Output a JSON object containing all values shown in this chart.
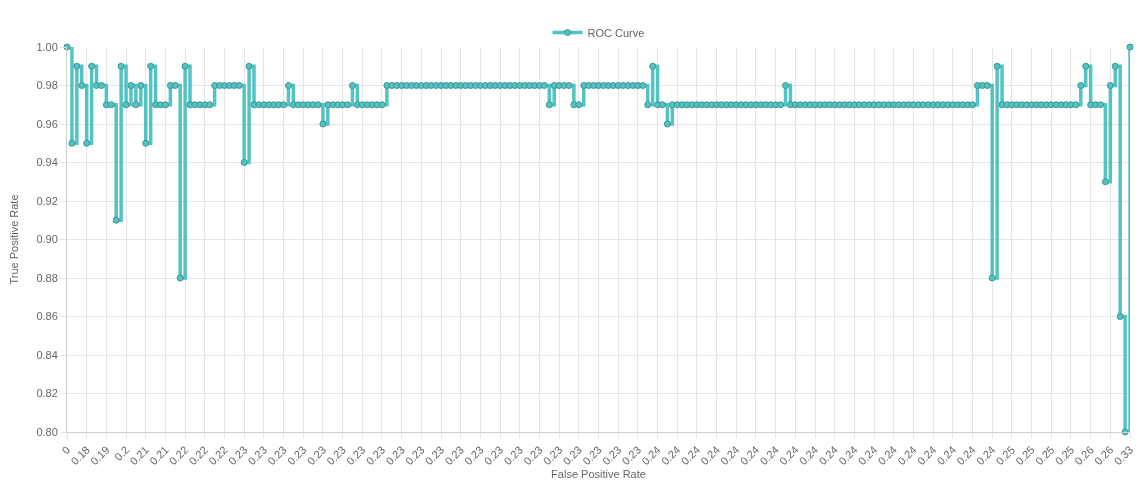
{
  "chart_data": {
    "type": "step",
    "xlabel": "False Positive Rate",
    "ylabel": "True Positive Rate",
    "categories": [
      "0",
      null,
      null,
      null,
      "0.18",
      null,
      null,
      null,
      "0.19",
      null,
      null,
      null,
      "0.2",
      null,
      null,
      null,
      "0.21",
      null,
      null,
      null,
      "0.21",
      null,
      null,
      null,
      "0.22",
      null,
      null,
      null,
      "0.22",
      null,
      null,
      null,
      "0.22",
      null,
      null,
      null,
      "0.23",
      null,
      null,
      null,
      "0.23",
      null,
      null,
      null,
      "0.23",
      null,
      null,
      null,
      "0.23",
      null,
      null,
      null,
      "0.23",
      null,
      null,
      null,
      "0.23",
      null,
      null,
      null,
      "0.23",
      null,
      null,
      null,
      "0.23",
      null,
      null,
      null,
      "0.23",
      null,
      null,
      null,
      "0.23",
      null,
      null,
      null,
      "0.23",
      null,
      null,
      null,
      "0.23",
      null,
      null,
      null,
      "0.23",
      null,
      null,
      null,
      "0.23",
      null,
      null,
      null,
      "0.23",
      null,
      null,
      null,
      "0.23",
      null,
      null,
      null,
      "0.23",
      null,
      null,
      null,
      "0.23",
      null,
      null,
      null,
      "0.23",
      null,
      null,
      null,
      "0.23",
      null,
      null,
      null,
      "0.23",
      null,
      null,
      null,
      "0.24",
      null,
      null,
      null,
      "0.24",
      null,
      null,
      null,
      "0.24",
      null,
      null,
      null,
      "0.24",
      null,
      null,
      null,
      "0.24",
      null,
      null,
      null,
      "0.24",
      null,
      null,
      null,
      "0.24",
      null,
      null,
      null,
      "0.24",
      null,
      null,
      null,
      "0.24",
      null,
      null,
      null,
      "0.24",
      null,
      null,
      null,
      "0.24",
      null,
      null,
      null,
      "0.24",
      null,
      null,
      null,
      "0.24",
      null,
      null,
      null,
      "0.24",
      null,
      null,
      null,
      "0.24",
      null,
      null,
      null,
      "0.24",
      null,
      null,
      null,
      "0.24",
      null,
      null,
      null,
      "0.24",
      null,
      null,
      null,
      "0.25",
      null,
      null,
      null,
      "0.25",
      null,
      null,
      null,
      "0.25",
      null,
      null,
      null,
      "0.25",
      null,
      null,
      null,
      "0.26",
      null,
      null,
      null,
      "0.26",
      null,
      null,
      null,
      "0.33"
    ],
    "series": [
      {
        "name": "ROC Curve",
        "color": "#4bc0c0",
        "values": [
          1.0,
          0.95,
          0.99,
          0.98,
          0.95,
          0.99,
          0.98,
          0.98,
          0.97,
          0.97,
          0.91,
          0.99,
          0.97,
          0.98,
          0.97,
          0.98,
          0.95,
          0.99,
          0.97,
          0.97,
          0.97,
          0.98,
          0.98,
          0.88,
          0.99,
          0.97,
          0.97,
          0.97,
          0.97,
          0.97,
          0.98,
          0.98,
          0.98,
          0.98,
          0.98,
          0.98,
          0.94,
          0.99,
          0.97,
          0.97,
          0.97,
          0.97,
          0.97,
          0.97,
          0.97,
          0.98,
          0.97,
          0.97,
          0.97,
          0.97,
          0.97,
          0.97,
          0.96,
          0.97,
          0.97,
          0.97,
          0.97,
          0.97,
          0.98,
          0.97,
          0.97,
          0.97,
          0.97,
          0.97,
          0.97,
          0.98,
          0.98,
          0.98,
          0.98,
          0.98,
          0.98,
          0.98,
          0.98,
          0.98,
          0.98,
          0.98,
          0.98,
          0.98,
          0.98,
          0.98,
          0.98,
          0.98,
          0.98,
          0.98,
          0.98,
          0.98,
          0.98,
          0.98,
          0.98,
          0.98,
          0.98,
          0.98,
          0.98,
          0.98,
          0.98,
          0.98,
          0.98,
          0.98,
          0.97,
          0.98,
          0.98,
          0.98,
          0.98,
          0.97,
          0.97,
          0.98,
          0.98,
          0.98,
          0.98,
          0.98,
          0.98,
          0.98,
          0.98,
          0.98,
          0.98,
          0.98,
          0.98,
          0.98,
          0.97,
          0.99,
          0.97,
          0.97,
          0.96,
          0.97,
          0.97,
          0.97,
          0.97,
          0.97,
          0.97,
          0.97,
          0.97,
          0.97,
          0.97,
          0.97,
          0.97,
          0.97,
          0.97,
          0.97,
          0.97,
          0.97,
          0.97,
          0.97,
          0.97,
          0.97,
          0.97,
          0.97,
          0.98,
          0.97,
          0.97,
          0.97,
          0.97,
          0.97,
          0.97,
          0.97,
          0.97,
          0.97,
          0.97,
          0.97,
          0.97,
          0.97,
          0.97,
          0.97,
          0.97,
          0.97,
          0.97,
          0.97,
          0.97,
          0.97,
          0.97,
          0.97,
          0.97,
          0.97,
          0.97,
          0.97,
          0.97,
          0.97,
          0.97,
          0.97,
          0.97,
          0.97,
          0.97,
          0.97,
          0.97,
          0.97,
          0.97,
          0.98,
          0.98,
          0.98,
          0.88,
          0.99,
          0.97,
          0.97,
          0.97,
          0.97,
          0.97,
          0.97,
          0.97,
          0.97,
          0.97,
          0.97,
          0.97,
          0.97,
          0.97,
          0.97,
          0.97,
          0.97,
          0.98,
          0.99,
          0.97,
          0.97,
          0.97,
          0.93,
          0.98,
          0.99,
          0.86,
          0.8,
          1.0
        ]
      }
    ],
    "ylim": [
      0.8,
      1.0
    ],
    "yticks": [
      {
        "value": 0.8,
        "label": "0.80"
      },
      {
        "value": 0.82,
        "label": "0.82"
      },
      {
        "value": 0.84,
        "label": "0.84"
      },
      {
        "value": 0.86,
        "label": "0.86"
      },
      {
        "value": 0.88,
        "label": "0.88"
      },
      {
        "value": 0.9,
        "label": "0.90"
      },
      {
        "value": 0.92,
        "label": "0.92"
      },
      {
        "value": 0.94,
        "label": "0.94"
      },
      {
        "value": 0.96,
        "label": "0.96"
      },
      {
        "value": 0.98,
        "label": "0.98"
      },
      {
        "value": 1.0,
        "label": "1.00"
      }
    ],
    "grid": true,
    "legend": "top",
    "marker": "circle",
    "line_style": "solid"
  }
}
